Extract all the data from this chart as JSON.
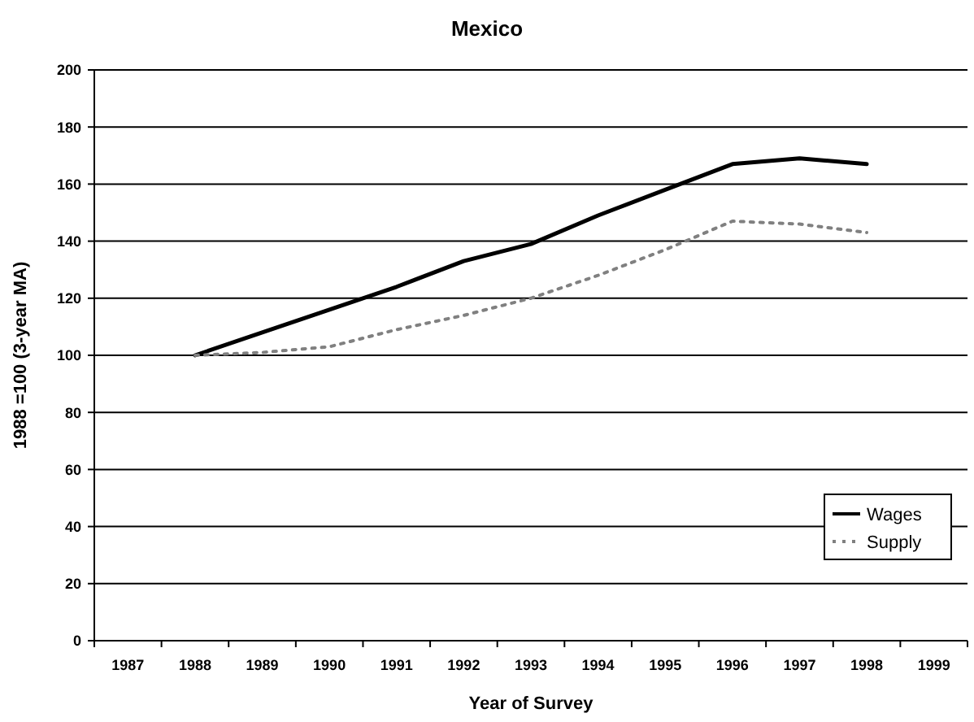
{
  "chart_data": {
    "type": "line",
    "title": "Mexico",
    "xlabel": "Year of Survey",
    "ylabel": "1988 =100 (3-year MA)",
    "categories": [
      "1987",
      "1988",
      "1989",
      "1990",
      "1991",
      "1992",
      "1993",
      "1994",
      "1995",
      "1996",
      "1997",
      "1998",
      "1999"
    ],
    "series": [
      {
        "name": "Wages",
        "color": "#000000",
        "line_style": "solid",
        "values": [
          null,
          100,
          108,
          116,
          124,
          133,
          139,
          149,
          158,
          167,
          169,
          167,
          null
        ]
      },
      {
        "name": "Supply",
        "color": "#808080",
        "line_style": "dotted",
        "values": [
          null,
          100,
          101,
          103,
          109,
          114,
          120,
          128,
          137,
          147,
          146,
          143,
          null
        ]
      }
    ],
    "ylim": [
      0,
      200
    ],
    "yticks": [
      0,
      20,
      40,
      60,
      80,
      100,
      120,
      140,
      160,
      180,
      200
    ],
    "grid": "y",
    "legend": "bottom right"
  }
}
